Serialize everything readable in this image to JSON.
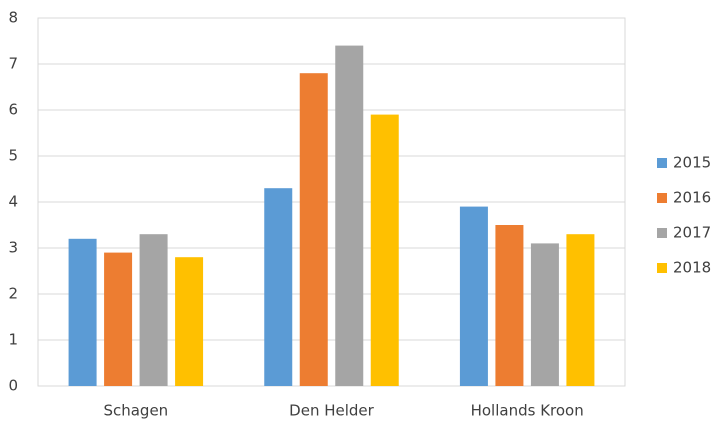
{
  "chart_data": {
    "type": "bar",
    "categories": [
      "Schagen",
      "Den Helder",
      "Hollands Kroon"
    ],
    "series": [
      {
        "name": "2015",
        "color": "#5b9bd5",
        "values": [
          3.2,
          4.3,
          3.9
        ]
      },
      {
        "name": "2016",
        "color": "#ed7d31",
        "values": [
          2.9,
          6.8,
          3.5
        ]
      },
      {
        "name": "2017",
        "color": "#a5a5a5",
        "values": [
          3.3,
          7.4,
          3.1
        ]
      },
      {
        "name": "2018",
        "color": "#ffc000",
        "values": [
          2.8,
          5.9,
          3.3
        ]
      }
    ],
    "ylim": [
      0,
      8
    ],
    "yticks": [
      0,
      1,
      2,
      3,
      4,
      5,
      6,
      7,
      8
    ],
    "grid": true,
    "legend": "right"
  }
}
